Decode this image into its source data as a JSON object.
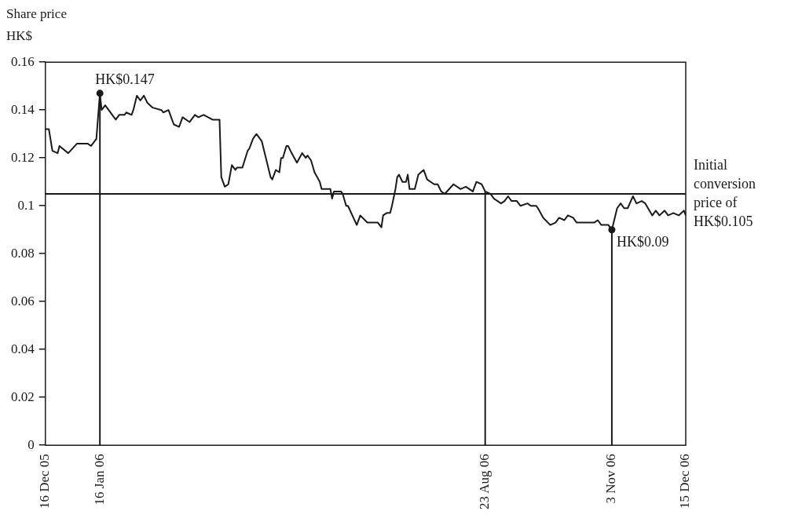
{
  "chart_data": {
    "type": "line",
    "title": "Share price",
    "ylabel": "HK$",
    "xlim": [
      "2005-12-16",
      "2006-12-15"
    ],
    "xticks": [
      {
        "value": "2005-12-16",
        "label": "16 Dec 05"
      },
      {
        "value": "2006-01-16",
        "label": "16 Jan 06"
      },
      {
        "value": "2006-08-23",
        "label": "23 Aug 06"
      },
      {
        "value": "2006-11-03",
        "label": "3 Nov 06"
      },
      {
        "value": "2006-12-15",
        "label": "15 Dec 06"
      }
    ],
    "ylim": [
      0,
      0.16
    ],
    "yticks": [
      0,
      0.02,
      0.04,
      0.06,
      0.08,
      0.1,
      0.12,
      0.14,
      0.16
    ],
    "series": [
      {
        "color": "#1a1a1a",
        "x": [
          "2005-12-16",
          "2005-12-18",
          "2005-12-20",
          "2005-12-23",
          "2005-12-24",
          "2005-12-29",
          "2006-01-03",
          "2006-01-09",
          "2006-01-11",
          "2006-01-14",
          "2006-01-16",
          "2006-01-17",
          "2006-01-19",
          "2006-01-25",
          "2006-01-27",
          "2006-01-30",
          "2006-01-31",
          "2006-02-03",
          "2006-02-04",
          "2006-02-06",
          "2006-02-08",
          "2006-02-10",
          "2006-02-12",
          "2006-02-15",
          "2006-02-20",
          "2006-02-21",
          "2006-02-24",
          "2006-02-27",
          "2006-03-02",
          "2006-03-04",
          "2006-03-08",
          "2006-03-11",
          "2006-03-13",
          "2006-03-16",
          "2006-03-21",
          "2006-03-25",
          "2006-03-26",
          "2006-03-28",
          "2006-03-30",
          "2006-04-01",
          "2006-04-03",
          "2006-04-04",
          "2006-04-07",
          "2006-04-10",
          "2006-04-11",
          "2006-04-13",
          "2006-04-15",
          "2006-04-18",
          "2006-04-21",
          "2006-04-23",
          "2006-04-24",
          "2006-04-26",
          "2006-04-28",
          "2006-04-29",
          "2006-04-30",
          "2006-05-02",
          "2006-05-03",
          "2006-05-05",
          "2006-05-08",
          "2006-05-11",
          "2006-05-13",
          "2006-05-14",
          "2006-05-16",
          "2006-05-18",
          "2006-05-21",
          "2006-05-22",
          "2006-05-25",
          "2006-05-27",
          "2006-05-28",
          "2006-05-29",
          "2006-06-02",
          "2006-06-03",
          "2006-06-05",
          "2006-06-06",
          "2006-06-11",
          "2006-06-13",
          "2006-06-17",
          "2006-06-23",
          "2006-06-25",
          "2006-06-26",
          "2006-06-28",
          "2006-06-30",
          "2006-07-01",
          "2006-07-03",
          "2006-07-04",
          "2006-07-05",
          "2006-07-07",
          "2006-07-09",
          "2006-07-10",
          "2006-07-11",
          "2006-07-14",
          "2006-07-16",
          "2006-07-19",
          "2006-07-21",
          "2006-07-25",
          "2006-07-27",
          "2006-07-29",
          "2006-07-31",
          "2006-08-05",
          "2006-08-09",
          "2006-08-12",
          "2006-08-16",
          "2006-08-18",
          "2006-08-21",
          "2006-08-23",
          "2006-08-26",
          "2006-08-28",
          "2006-09-01",
          "2006-09-03",
          "2006-09-05",
          "2006-09-07",
          "2006-09-10",
          "2006-09-12",
          "2006-09-16",
          "2006-09-18",
          "2006-09-21",
          "2006-09-22",
          "2006-09-25",
          "2006-09-29",
          "2006-10-02",
          "2006-10-04",
          "2006-10-07",
          "2006-10-09",
          "2006-10-12",
          "2006-10-14",
          "2006-10-24",
          "2006-10-26",
          "2006-10-28",
          "2006-11-01",
          "2006-11-03",
          "2006-11-06",
          "2006-11-08",
          "2006-11-10",
          "2006-11-12",
          "2006-11-15",
          "2006-11-17",
          "2006-11-20",
          "2006-11-22",
          "2006-11-26",
          "2006-11-28",
          "2006-11-30",
          "2006-12-03",
          "2006-12-05",
          "2006-12-08",
          "2006-12-11",
          "2006-12-14",
          "2006-12-15"
        ],
        "values": [
          0.132,
          0.132,
          0.123,
          0.122,
          0.125,
          0.122,
          0.126,
          0.126,
          0.125,
          0.128,
          0.147,
          0.14,
          0.142,
          0.136,
          0.138,
          0.138,
          0.139,
          0.138,
          0.14,
          0.146,
          0.144,
          0.146,
          0.143,
          0.141,
          0.14,
          0.139,
          0.14,
          0.134,
          0.133,
          0.137,
          0.135,
          0.138,
          0.137,
          0.138,
          0.136,
          0.136,
          0.112,
          0.108,
          0.109,
          0.117,
          0.115,
          0.116,
          0.116,
          0.123,
          0.124,
          0.128,
          0.13,
          0.127,
          0.118,
          0.112,
          0.111,
          0.115,
          0.114,
          0.12,
          0.12,
          0.125,
          0.125,
          0.122,
          0.118,
          0.122,
          0.12,
          0.121,
          0.119,
          0.114,
          0.11,
          0.107,
          0.107,
          0.107,
          0.103,
          0.106,
          0.106,
          0.105,
          0.1,
          0.1,
          0.092,
          0.096,
          0.093,
          0.093,
          0.091,
          0.096,
          0.097,
          0.097,
          0.1,
          0.107,
          0.112,
          0.113,
          0.11,
          0.11,
          0.113,
          0.107,
          0.107,
          0.113,
          0.115,
          0.111,
          0.109,
          0.109,
          0.106,
          0.105,
          0.109,
          0.107,
          0.108,
          0.106,
          0.11,
          0.109,
          0.106,
          0.105,
          0.103,
          0.101,
          0.102,
          0.104,
          0.102,
          0.102,
          0.1,
          0.101,
          0.1,
          0.1,
          0.099,
          0.095,
          0.092,
          0.093,
          0.095,
          0.094,
          0.096,
          0.095,
          0.093,
          0.093,
          0.094,
          0.092,
          0.092,
          0.09,
          0.099,
          0.101,
          0.099,
          0.099,
          0.104,
          0.101,
          0.102,
          0.101,
          0.096,
          0.098,
          0.096,
          0.098,
          0.096,
          0.097,
          0.096,
          0.098,
          0.096
        ]
      }
    ],
    "ref_lines": [
      {
        "axis": "y",
        "value": 0.105,
        "label": "Initial conversion price of HK$0.105",
        "color": "#1a1a1a"
      },
      {
        "axis": "x",
        "value": "2006-01-16",
        "color": "#1a1a1a"
      },
      {
        "axis": "x",
        "value": "2006-08-23",
        "color": "#1a1a1a"
      },
      {
        "axis": "x",
        "value": "2006-11-03",
        "color": "#1a1a1a"
      }
    ],
    "annotations": [
      {
        "text": "HK$0.147",
        "x": "2006-01-16",
        "y": 0.147
      },
      {
        "text": "HK$0.09",
        "x": "2006-11-03",
        "y": 0.09
      }
    ]
  }
}
